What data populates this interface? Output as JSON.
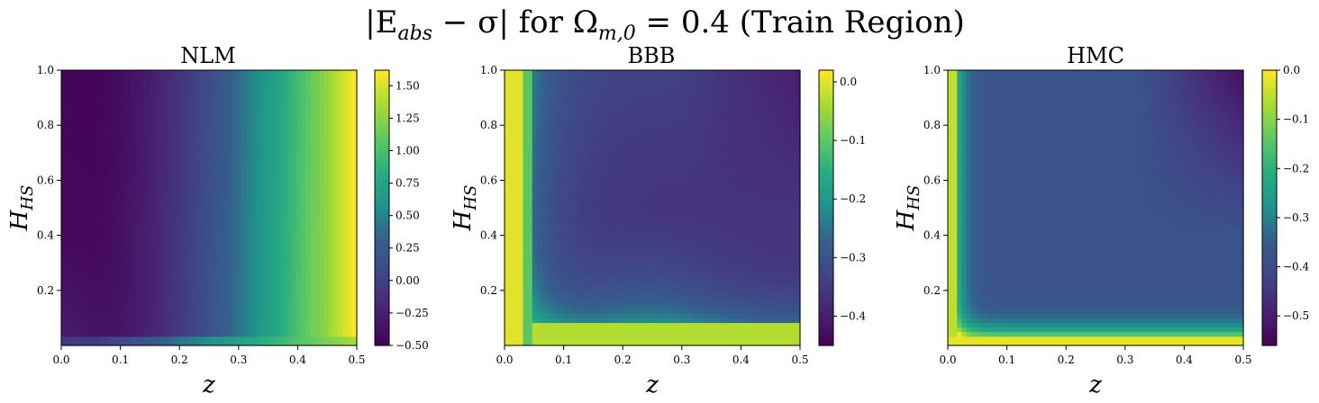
{
  "figure": {
    "title_parts": [
      "|E",
      "abs",
      " − σ| for Ω",
      "m,0",
      " = 0.4 (Train Region)"
    ]
  },
  "chart_data": [
    {
      "type": "heatmap",
      "title": "NLM",
      "xlabel": "z",
      "ylabel_main": "H",
      "ylabel_sub": "HS",
      "xlim": [
        0.0,
        0.5
      ],
      "ylim": [
        0.0,
        1.0
      ],
      "xticks": [
        "0.0",
        "0.1",
        "0.2",
        "0.3",
        "0.4",
        "0.5"
      ],
      "yticks": [
        "0.2",
        "0.4",
        "0.6",
        "0.8",
        "1.0"
      ],
      "colorbar": {
        "min": -0.5,
        "max": 1.62,
        "ticks": [
          -0.5,
          -0.25,
          0.0,
          0.25,
          0.5,
          0.75,
          1.0,
          1.25,
          1.5
        ],
        "tick_labels": [
          "−0.50",
          "−0.25",
          "0.00",
          "0.25",
          "0.50",
          "0.75",
          "1.00",
          "1.25",
          "1.50"
        ]
      },
      "colormap": "viridis"
    },
    {
      "type": "heatmap",
      "title": "BBB",
      "xlabel": "z",
      "ylabel_main": "H",
      "ylabel_sub": "HS",
      "xlim": [
        0.0,
        0.5
      ],
      "ylim": [
        0.0,
        1.0
      ],
      "xticks": [
        "0.0",
        "0.1",
        "0.2",
        "0.3",
        "0.4",
        "0.5"
      ],
      "yticks": [
        "0.2",
        "0.4",
        "0.6",
        "0.8",
        "1.0"
      ],
      "colorbar": {
        "min": -0.45,
        "max": 0.02,
        "ticks": [
          -0.4,
          -0.3,
          -0.2,
          -0.1,
          0.0
        ],
        "tick_labels": [
          "−0.4",
          "−0.3",
          "−0.2",
          "−0.1",
          "0.0"
        ]
      },
      "colormap": "viridis"
    },
    {
      "type": "heatmap",
      "title": "HMC",
      "xlabel": "z",
      "ylabel_main": "H",
      "ylabel_sub": "HS",
      "xlim": [
        0.0,
        0.5
      ],
      "ylim": [
        0.0,
        1.0
      ],
      "xticks": [
        "0.0",
        "0.1",
        "0.2",
        "0.3",
        "0.4",
        "0.5"
      ],
      "yticks": [
        "0.2",
        "0.4",
        "0.6",
        "0.8",
        "1.0"
      ],
      "colorbar": {
        "min": -0.56,
        "max": 0.0,
        "ticks": [
          -0.5,
          -0.4,
          -0.3,
          -0.2,
          -0.1,
          0.0
        ],
        "tick_labels": [
          "−0.5",
          "−0.4",
          "−0.3",
          "−0.2",
          "−0.1",
          "0.0"
        ]
      },
      "colormap": "viridis"
    }
  ]
}
